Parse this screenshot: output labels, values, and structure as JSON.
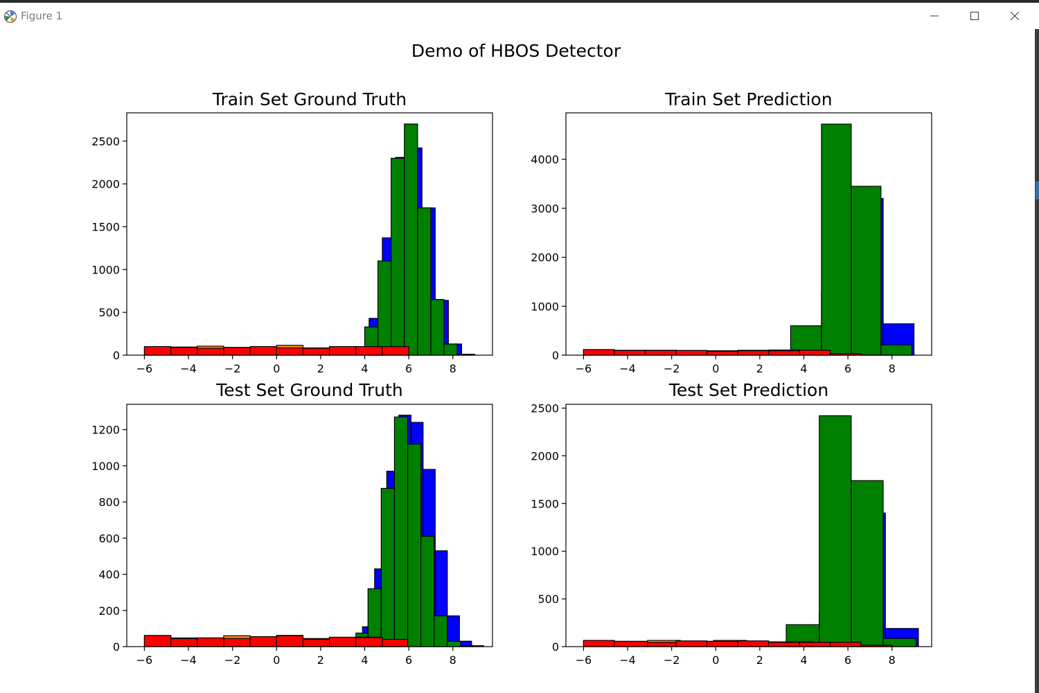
{
  "window": {
    "title": "Figure 1"
  },
  "figure": {
    "suptitle": "Demo of HBOS Detector",
    "colors": {
      "blue": "#0000ff",
      "green": "#008000",
      "orange": "#ff8c00",
      "red": "#ff0000",
      "edge": "#000000"
    }
  },
  "chart_data": [
    {
      "type": "bar",
      "title": "Train Set Ground Truth",
      "xlim": [
        -6.8,
        9.8
      ],
      "ylim": [
        0,
        2830
      ],
      "xticks": [
        -6,
        -4,
        -2,
        0,
        2,
        4,
        6,
        8
      ],
      "xtick_labels": [
        "−6",
        "−4",
        "−2",
        "0",
        "2",
        "4",
        "6",
        "8"
      ],
      "yticks": [
        0,
        500,
        1000,
        1500,
        2000,
        2500
      ],
      "ytick_labels": [
        "0",
        "500",
        "1000",
        "1500",
        "2000",
        "2500"
      ],
      "series": [
        {
          "name": "blue",
          "color": "#0000ff",
          "edges": [
            4.2,
            4.8,
            5.4,
            6.0,
            6.6,
            7.2,
            7.8,
            8.4,
            9.0
          ],
          "values": [
            430,
            1370,
            2310,
            2420,
            1720,
            640,
            130,
            10
          ]
        },
        {
          "name": "green",
          "color": "#008000",
          "edges": [
            4.0,
            4.6,
            5.2,
            5.8,
            6.4,
            7.0,
            7.6,
            8.2,
            8.8
          ],
          "values": [
            330,
            1100,
            2300,
            2700,
            1720,
            650,
            130,
            10
          ]
        },
        {
          "name": "orange",
          "color": "#ff8c00",
          "edges": [
            -6.0,
            -4.8,
            -3.6,
            -2.4,
            -1.2,
            0.0,
            1.2,
            2.4,
            3.6,
            4.8
          ],
          "values": [
            90,
            95,
            105,
            90,
            95,
            115,
            85,
            95,
            100
          ]
        },
        {
          "name": "red",
          "color": "#ff0000",
          "edges": [
            -6.0,
            -4.8,
            -3.6,
            -2.4,
            -1.2,
            0.0,
            1.2,
            2.4,
            3.6,
            4.8,
            6.0
          ],
          "values": [
            100,
            90,
            80,
            90,
            100,
            85,
            80,
            100,
            100,
            100
          ]
        }
      ]
    },
    {
      "type": "bar",
      "title": "Train Set Prediction",
      "xlim": [
        -6.8,
        9.8
      ],
      "ylim": [
        0,
        4950
      ],
      "xticks": [
        -6,
        -4,
        -2,
        0,
        2,
        4,
        6,
        8
      ],
      "xtick_labels": [
        "−6",
        "−4",
        "−2",
        "0",
        "2",
        "4",
        "6",
        "8"
      ],
      "yticks": [
        0,
        1000,
        2000,
        3000,
        4000
      ],
      "ytick_labels": [
        "0",
        "1000",
        "2000",
        "3000",
        "4000"
      ],
      "series": [
        {
          "name": "blue",
          "color": "#0000ff",
          "edges": [
            4.8,
            6.2,
            7.6,
            9.0
          ],
          "values": [
            1300,
            3200,
            640
          ]
        },
        {
          "name": "green",
          "color": "#008000",
          "edges": [
            3.4,
            4.8,
            6.15,
            7.5,
            8.9
          ],
          "values": [
            600,
            4720,
            3450,
            210
          ]
        },
        {
          "name": "orange",
          "color": "#ff8c00",
          "edges": [
            -6.0,
            -4.6,
            -3.2,
            -1.8,
            -0.4,
            1.0,
            2.4,
            3.8
          ],
          "values": [
            110,
            100,
            100,
            95,
            90,
            100,
            105
          ]
        },
        {
          "name": "red",
          "color": "#ff0000",
          "edges": [
            -6.0,
            -4.6,
            -3.2,
            -1.8,
            -0.4,
            1.0,
            2.4,
            3.8,
            5.2,
            6.6,
            8.0
          ],
          "values": [
            115,
            95,
            95,
            95,
            80,
            90,
            90,
            100,
            30,
            5
          ]
        }
      ]
    },
    {
      "type": "bar",
      "title": "Test Set Ground Truth",
      "xlim": [
        -6.8,
        9.8
      ],
      "ylim": [
        0,
        1340
      ],
      "xticks": [
        -6,
        -4,
        -2,
        0,
        2,
        4,
        6,
        8
      ],
      "xtick_labels": [
        "−6",
        "−4",
        "−2",
        "0",
        "2",
        "4",
        "6",
        "8"
      ],
      "yticks": [
        0,
        200,
        400,
        600,
        800,
        1000,
        1200
      ],
      "ytick_labels": [
        "0",
        "200",
        "400",
        "600",
        "800",
        "1000",
        "1200"
      ],
      "series": [
        {
          "name": "blue",
          "color": "#0000ff",
          "edges": [
            3.9,
            4.45,
            5.0,
            5.55,
            6.1,
            6.65,
            7.2,
            7.75,
            8.3,
            8.85,
            9.4
          ],
          "values": [
            110,
            430,
            970,
            1280,
            1240,
            980,
            530,
            170,
            30,
            5
          ]
        },
        {
          "name": "green",
          "color": "#008000",
          "edges": [
            3.6,
            4.15,
            4.75,
            5.35,
            5.95,
            6.55,
            7.15,
            7.75,
            8.35,
            8.95
          ],
          "values": [
            75,
            320,
            875,
            1270,
            1120,
            610,
            170,
            30,
            5
          ]
        },
        {
          "name": "orange",
          "color": "#ff8c00",
          "edges": [
            -6.0,
            -4.8,
            -3.6,
            -2.4,
            -1.2,
            0.0,
            1.2,
            2.4,
            3.6,
            4.8
          ],
          "values": [
            55,
            48,
            48,
            60,
            55,
            62,
            45,
            50,
            52
          ]
        },
        {
          "name": "red",
          "color": "#ff0000",
          "edges": [
            -6.0,
            -4.8,
            -3.6,
            -2.4,
            -1.2,
            0.0,
            1.2,
            2.4,
            3.6,
            4.8,
            5.95
          ],
          "values": [
            62,
            44,
            48,
            45,
            55,
            60,
            40,
            52,
            50,
            40
          ]
        }
      ]
    },
    {
      "type": "bar",
      "title": "Test Set Prediction",
      "xlim": [
        -6.8,
        9.8
      ],
      "ylim": [
        0,
        2540
      ],
      "xticks": [
        -6,
        -4,
        -2,
        0,
        2,
        4,
        6,
        8
      ],
      "xtick_labels": [
        "−6",
        "−4",
        "−2",
        "0",
        "2",
        "4",
        "6",
        "8"
      ],
      "yticks": [
        0,
        500,
        1000,
        1500,
        2000,
        2500
      ],
      "ytick_labels": [
        "0",
        "500",
        "1000",
        "1500",
        "2000",
        "2500"
      ],
      "series": [
        {
          "name": "blue",
          "color": "#0000ff",
          "edges": [
            4.7,
            6.2,
            7.7,
            9.2
          ],
          "values": [
            350,
            1400,
            190
          ]
        },
        {
          "name": "green",
          "color": "#008000",
          "edges": [
            3.2,
            4.7,
            6.15,
            7.6,
            9.1
          ],
          "values": [
            230,
            2420,
            1740,
            85
          ]
        },
        {
          "name": "orange",
          "color": "#ff8c00",
          "edges": [
            -6.0,
            -4.6,
            -3.1,
            -1.6,
            -0.1,
            1.4,
            2.9,
            4.4
          ],
          "values": [
            60,
            55,
            65,
            55,
            65,
            50,
            50
          ]
        },
        {
          "name": "red",
          "color": "#ff0000",
          "edges": [
            -6.0,
            -4.6,
            -3.1,
            -1.8,
            -0.4,
            1.0,
            2.4,
            3.8,
            5.2,
            6.6,
            8.0
          ],
          "values": [
            65,
            55,
            45,
            60,
            55,
            60,
            45,
            45,
            45,
            15
          ]
        }
      ]
    }
  ]
}
